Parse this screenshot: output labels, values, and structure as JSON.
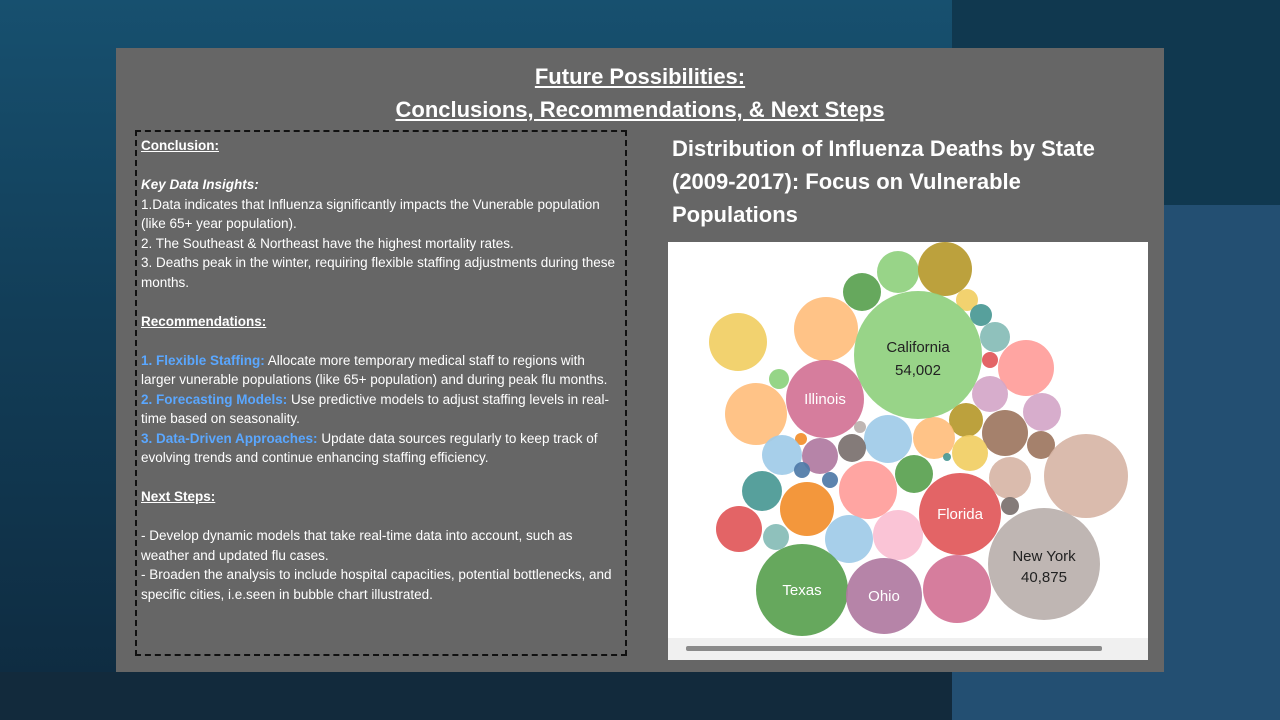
{
  "slide": {
    "title_line1": "Future Possibilities:",
    "title_line2": "Conclusions, Recommendations, & Next Steps"
  },
  "panel": {
    "conclusion_heading": "Conclusion:",
    "insights_heading": "Key Data Insights:",
    "insights": [
      "1.Data indicates that Influenza significantly impacts the Vunerable population (like 65+ year population).",
      "2. The Southeast & Northeast have the highest mortality rates.",
      "3. Deaths peak in the winter, requiring flexible staffing adjustments during these months."
    ],
    "recommendations_heading": "Recommendations:",
    "recommendations": [
      {
        "label": "1. Flexible Staffing:",
        "text": " Allocate more temporary medical staff to regions with larger vunerable populations (like 65+ population) and during peak flu months."
      },
      {
        "label": "2. Forecasting Models:",
        "text": " Use predictive models to adjust staffing levels in real-time based on seasonality."
      },
      {
        "label": "3. Data-Driven Approaches:",
        "text": " Update data sources regularly to keep track of evolving trends and continue enhancing staffing efficiency."
      }
    ],
    "next_steps_heading": "Next Steps:",
    "next_steps": [
      "- Develop dynamic models that take real-time data into account, such as weather and updated flu cases.",
      "- Broaden the analysis to include hospital capacities, potential bottlenecks, and specific cities, i.e.seen in bubble chart illustrated."
    ]
  },
  "chart_data": {
    "type": "bubble",
    "title": "Distribution of Influenza Deaths by State (2009-2017): Focus on Vulnerable Populations",
    "labeled_bubbles": [
      {
        "state": "California",
        "value": "54,002",
        "color": "#8fd07e"
      },
      {
        "state": "New York",
        "value": "40,875",
        "color": "#bab0ac"
      },
      {
        "state": "Texas",
        "color": "#59a14f"
      },
      {
        "state": "Florida",
        "color": "#e15759"
      },
      {
        "state": "Illinois",
        "color": "#d37295"
      },
      {
        "state": "Ohio",
        "color": "#b07aa1"
      }
    ]
  }
}
